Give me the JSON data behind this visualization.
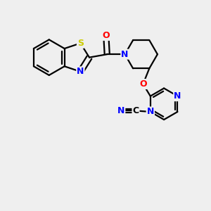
{
  "bg_color": "#efefef",
  "bond_color": "#000000",
  "atom_colors": {
    "S": "#cccc00",
    "N": "#0000ff",
    "O": "#ff0000",
    "C": "#000000"
  },
  "bond_lw": 1.6,
  "figsize": [
    3.0,
    3.0
  ],
  "dpi": 100
}
